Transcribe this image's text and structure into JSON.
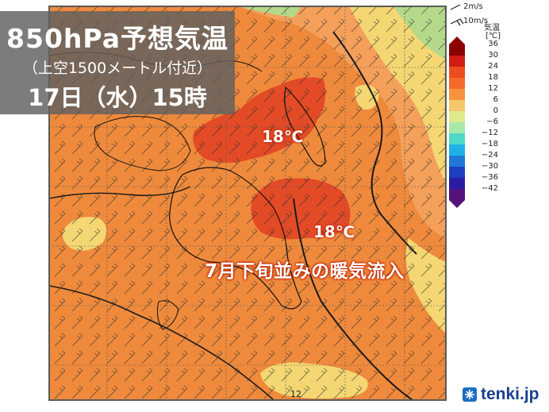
{
  "title": {
    "line1": "850hPa予想気温",
    "line2": "（上空1500メートル付近）",
    "line3": "17日（水）15時"
  },
  "map_labels": {
    "temp_north": "18℃",
    "temp_south": "18℃",
    "headline": "7月下旬並みの暖気流入",
    "contour_value": "12"
  },
  "legend": {
    "wind_2ms": "2m/s",
    "wind_10ms": "10m/s",
    "variable": "気温",
    "unit": "[℃]",
    "ticks": [
      "36",
      "30",
      "24",
      "18",
      "12",
      "6",
      "0",
      "−6",
      "−12",
      "−18",
      "−24",
      "−30",
      "−36",
      "−42"
    ],
    "colors": [
      "#8b0000",
      "#d11c13",
      "#ee4b1f",
      "#f46a2a",
      "#f7933e",
      "#f6c66a",
      "#dfe98c",
      "#a7e9a9",
      "#4fd8c7",
      "#1fb1e6",
      "#1f78d6",
      "#1e3fbf",
      "#2a1ca3",
      "#56127a"
    ]
  },
  "logo": {
    "text": "tenki.jp",
    "icon": "tenki-snowflake-icon"
  },
  "colors": {
    "map_orange": "#ef8a3c",
    "map_red": "#e34b26",
    "map_yellow": "#f4d773",
    "map_lightgreen": "#b5d98a",
    "map_frame": "#5a5a5a"
  }
}
